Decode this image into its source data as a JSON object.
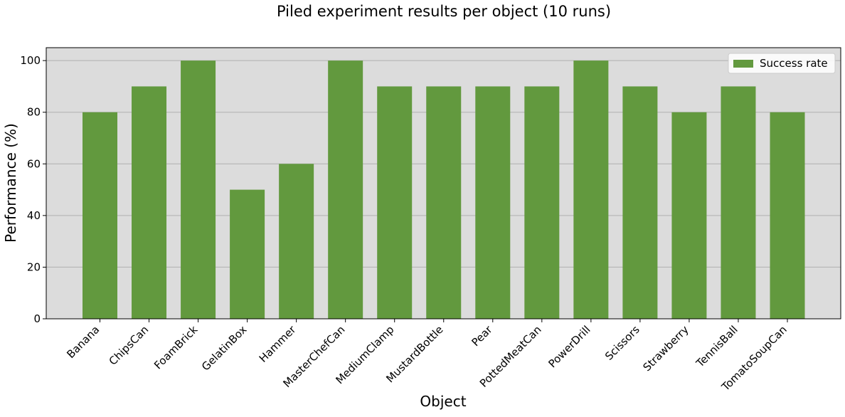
{
  "chart_data": {
    "type": "bar",
    "title": "Piled experiment results per object (10 runs)",
    "xlabel": "Object",
    "ylabel": "Performance (%)",
    "categories": [
      "Banana",
      "ChipsCan",
      "FoamBrick",
      "GelatinBox",
      "Hammer",
      "MasterChefCan",
      "MediumClamp",
      "MustardBottle",
      "Pear",
      "PottedMeatCan",
      "PowerDrill",
      "Scissors",
      "Strawberry",
      "TennisBall",
      "TomatoSoupCan"
    ],
    "series": [
      {
        "name": "Success rate",
        "values": [
          80,
          90,
          100,
          50,
          60,
          100,
          90,
          90,
          90,
          90,
          100,
          90,
          80,
          90,
          80
        ],
        "color": "#62993e"
      }
    ],
    "ylim": [
      0,
      105
    ],
    "yticks": [
      0,
      20,
      40,
      60,
      80,
      100
    ],
    "grid": "horizontal",
    "legend": "top-right",
    "plot_background": "#dcdcdc"
  }
}
